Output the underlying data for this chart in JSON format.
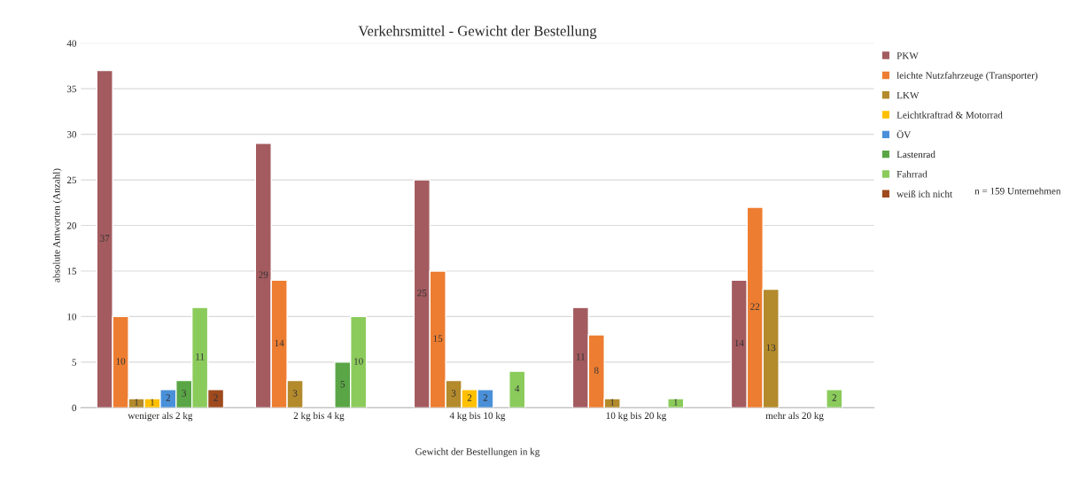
{
  "chart_data": {
    "type": "bar",
    "title": "Verkehrsmittel - Gewicht der Bestellung",
    "xlabel": "Gewicht der Bestellungen in kg",
    "ylabel": "absolute Antworten (Anzahl)",
    "categories": [
      "weniger als 2 kg",
      "2 kg bis 4 kg",
      "4 kg bis 10 kg",
      "10 kg bis 20 kg",
      "mehr als 20 kg"
    ],
    "series": [
      {
        "name": "PKW",
        "color": "#a35b5f",
        "values": [
          37,
          29,
          25,
          11,
          14
        ]
      },
      {
        "name": "leichte Nutzfahrzeuge (Transporter)",
        "color": "#ed7d31",
        "values": [
          10,
          14,
          15,
          8,
          22
        ]
      },
      {
        "name": "LKW",
        "color": "#b38a2c",
        "values": [
          1,
          3,
          3,
          1,
          13
        ]
      },
      {
        "name": "Leichtkraftrad & Motorrad",
        "color": "#ffc000",
        "values": [
          1,
          null,
          2,
          null,
          null
        ]
      },
      {
        "name": "ÖV",
        "color": "#4a90d9",
        "values": [
          2,
          null,
          2,
          null,
          null
        ]
      },
      {
        "name": "Lastenrad",
        "color": "#5aa646",
        "values": [
          3,
          5,
          null,
          null,
          null
        ]
      },
      {
        "name": "Fahrrad",
        "color": "#8bcb5c",
        "values": [
          11,
          10,
          4,
          1,
          2
        ]
      },
      {
        "name": "weiß ich nicht",
        "color": "#9e4a1e",
        "values": [
          2,
          null,
          null,
          null,
          null
        ]
      }
    ],
    "ylim": [
      0,
      40
    ],
    "yticks": [
      0,
      5,
      10,
      15,
      20,
      25,
      30,
      35,
      40
    ],
    "grid": "y",
    "legend": "right",
    "data_labels": true,
    "annotations": [
      "n = 159 Unternehmen"
    ]
  }
}
